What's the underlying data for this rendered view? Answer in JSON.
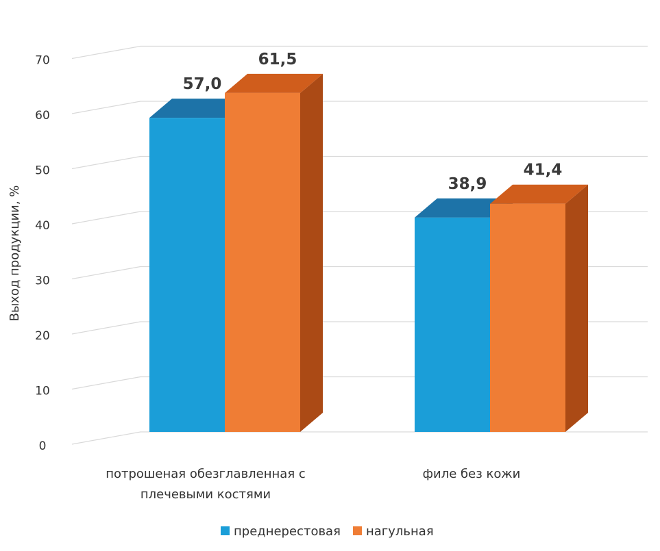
{
  "chart_data": {
    "type": "bar",
    "style": "3d-clustered",
    "ylabel": "Выход продукции, %",
    "ylim": [
      0,
      70
    ],
    "yticks": [
      0,
      10,
      20,
      30,
      40,
      50,
      60,
      70
    ],
    "grid": true,
    "legend_position": "bottom",
    "categories": [
      [
        "потрошеная обезглавленная  с",
        "плечевыми костями"
      ],
      [
        "филе без кожи"
      ]
    ],
    "series": [
      {
        "name": "преднерестовая",
        "values": [
          57.0,
          38.9
        ],
        "labels": [
          "57,0",
          "38,9"
        ],
        "color": "#1b9ed8",
        "top_color": "#1d73a8",
        "side_color": "#155f8c"
      },
      {
        "name": "нагульная",
        "values": [
          61.5,
          41.4
        ],
        "labels": [
          "61,5",
          "41,4"
        ],
        "color": "#ef7d35",
        "top_color": "#d05d1c",
        "side_color": "#ab4a15"
      }
    ]
  }
}
